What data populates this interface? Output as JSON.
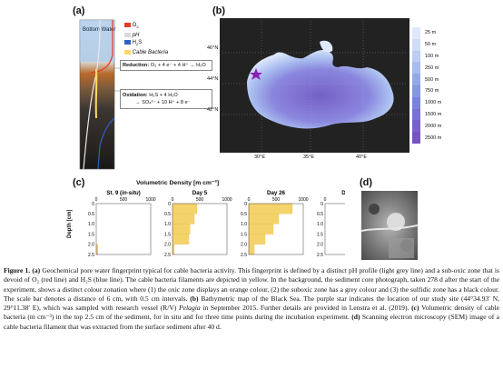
{
  "panels": {
    "a": {
      "label": "(a)",
      "column_title": "Bottom Water",
      "legend": [
        {
          "name": "O",
          "sub": "2",
          "color": "#e53a2b"
        },
        {
          "name": "pH",
          "sub": "",
          "color": "#d9d9d9"
        },
        {
          "name": "H",
          "sub": "2",
          "suffix": "S",
          "color": "#2f5fc4"
        },
        {
          "name": "Cable Bacteria",
          "sub": "",
          "color": "#ffd966"
        }
      ],
      "reduction_label": "Reduction:",
      "reduction_eq": "O₂ + 4 e⁻ + 4 H⁺ → H₂O",
      "oxidation_label": "Oxidation:",
      "oxidation_eq1": "H₂S + 4 H₂O",
      "oxidation_eq2": "→ SO₄²⁻ + 10 H⁺ + 8 e⁻"
    },
    "b": {
      "label": "(b)",
      "lat_labels": [
        "46°N",
        "44°N",
        "42°N"
      ],
      "lon_labels": [
        "30°E",
        "35°E",
        "40°E"
      ],
      "depth_scale": [
        "25 m",
        "50 m",
        "100 m",
        "250 m",
        "500 m",
        "750 m",
        "1000 m",
        "1500 m",
        "2000 m",
        "2500 m"
      ],
      "depth_colors": [
        "#dfe8fb",
        "#cfdcf8",
        "#bcccf4",
        "#a8bcef",
        "#95a9ea",
        "#8497e2",
        "#7a84da",
        "#7872d2",
        "#7862c8",
        "#7654bf"
      ],
      "star_color": "#8a1fb4"
    },
    "c": {
      "label": "(c)",
      "title": "Volumetric Density [m cm⁻³]",
      "ylabel": "Depth [cm]"
    },
    "d": {
      "label": "(d)"
    }
  },
  "chart_data": {
    "type": "bar",
    "orientation": "horizontal",
    "title": "Volumetric Density [m cm⁻³]",
    "ylabel": "Depth [cm]",
    "y_ticks": [
      "0",
      "0.5",
      "1.0",
      "1.5",
      "2.0",
      "2.5"
    ],
    "x_ticks": [
      "0",
      "500",
      "1000"
    ],
    "xlim": [
      0,
      1000
    ],
    "ylim": [
      0,
      2.5
    ],
    "depth_intervals": [
      [
        0,
        0.5
      ],
      [
        0.5,
        1.0
      ],
      [
        1.0,
        1.5
      ],
      [
        1.5,
        2.0
      ],
      [
        2.0,
        2.5
      ]
    ],
    "bar_color": "#f5d36b",
    "subplots": [
      {
        "name": "St. 9 (in-situ)",
        "name_main": "St. 9 (",
        "name_ital": "in-situ",
        "name_end": ")",
        "values": [
          0,
          0,
          0,
          0,
          30
        ]
      },
      {
        "name": "Day 5",
        "values": [
          450,
          400,
          320,
          300,
          30
        ]
      },
      {
        "name": "Day 26",
        "values": [
          800,
          550,
          450,
          300,
          100
        ]
      },
      {
        "name": "Day 207",
        "values": [
          0,
          0,
          0,
          0,
          0
        ]
      }
    ]
  },
  "caption": {
    "fig_label": "Figure 1.",
    "text": " Geochemical pore water fingerprint typical for cable bacteria activity. This fingerprint is defined by a distinct pH profile (light grey line) and a sub-oxic zone that is devoid of O₂ (red line) and H₂S (blue line). The cable bacteria filaments are depicted in yellow. In the background, the sediment core photograph, taken 278 d after the start of the experiment, shows a distinct colour zonation where (1) the oxic zone displays an orange colour, (2) the suboxic zone has a grey colour and (3) the sulfidic zone has a black colour. The scale bar denotes a distance of 6 cm, with 0.5 cm intervals.",
    "b_label": "(b)",
    "b_text": " Bathymetric map of the Black Sea. The purple star indicates the location of our study site (44°34.93′ N, 29°11.38′ E), which was sampled with research vessel (R/V)",
    "vessel": "Pelagia",
    "b_text2": " in September 2015. Further details are provided in Lenstra et al. (2019).",
    "c_label": "(c)",
    "c_text": " Volumetric density of cable bacteria (m cm⁻³) in the top 2.5 cm of the sediment, for in situ and for three time points during the incubation experiment.",
    "d_label": "(d)",
    "d_text": " Scanning electron microscopy (SEM) image of a cable bacteria filament that was extracted from the surface sediment after 40 d."
  }
}
